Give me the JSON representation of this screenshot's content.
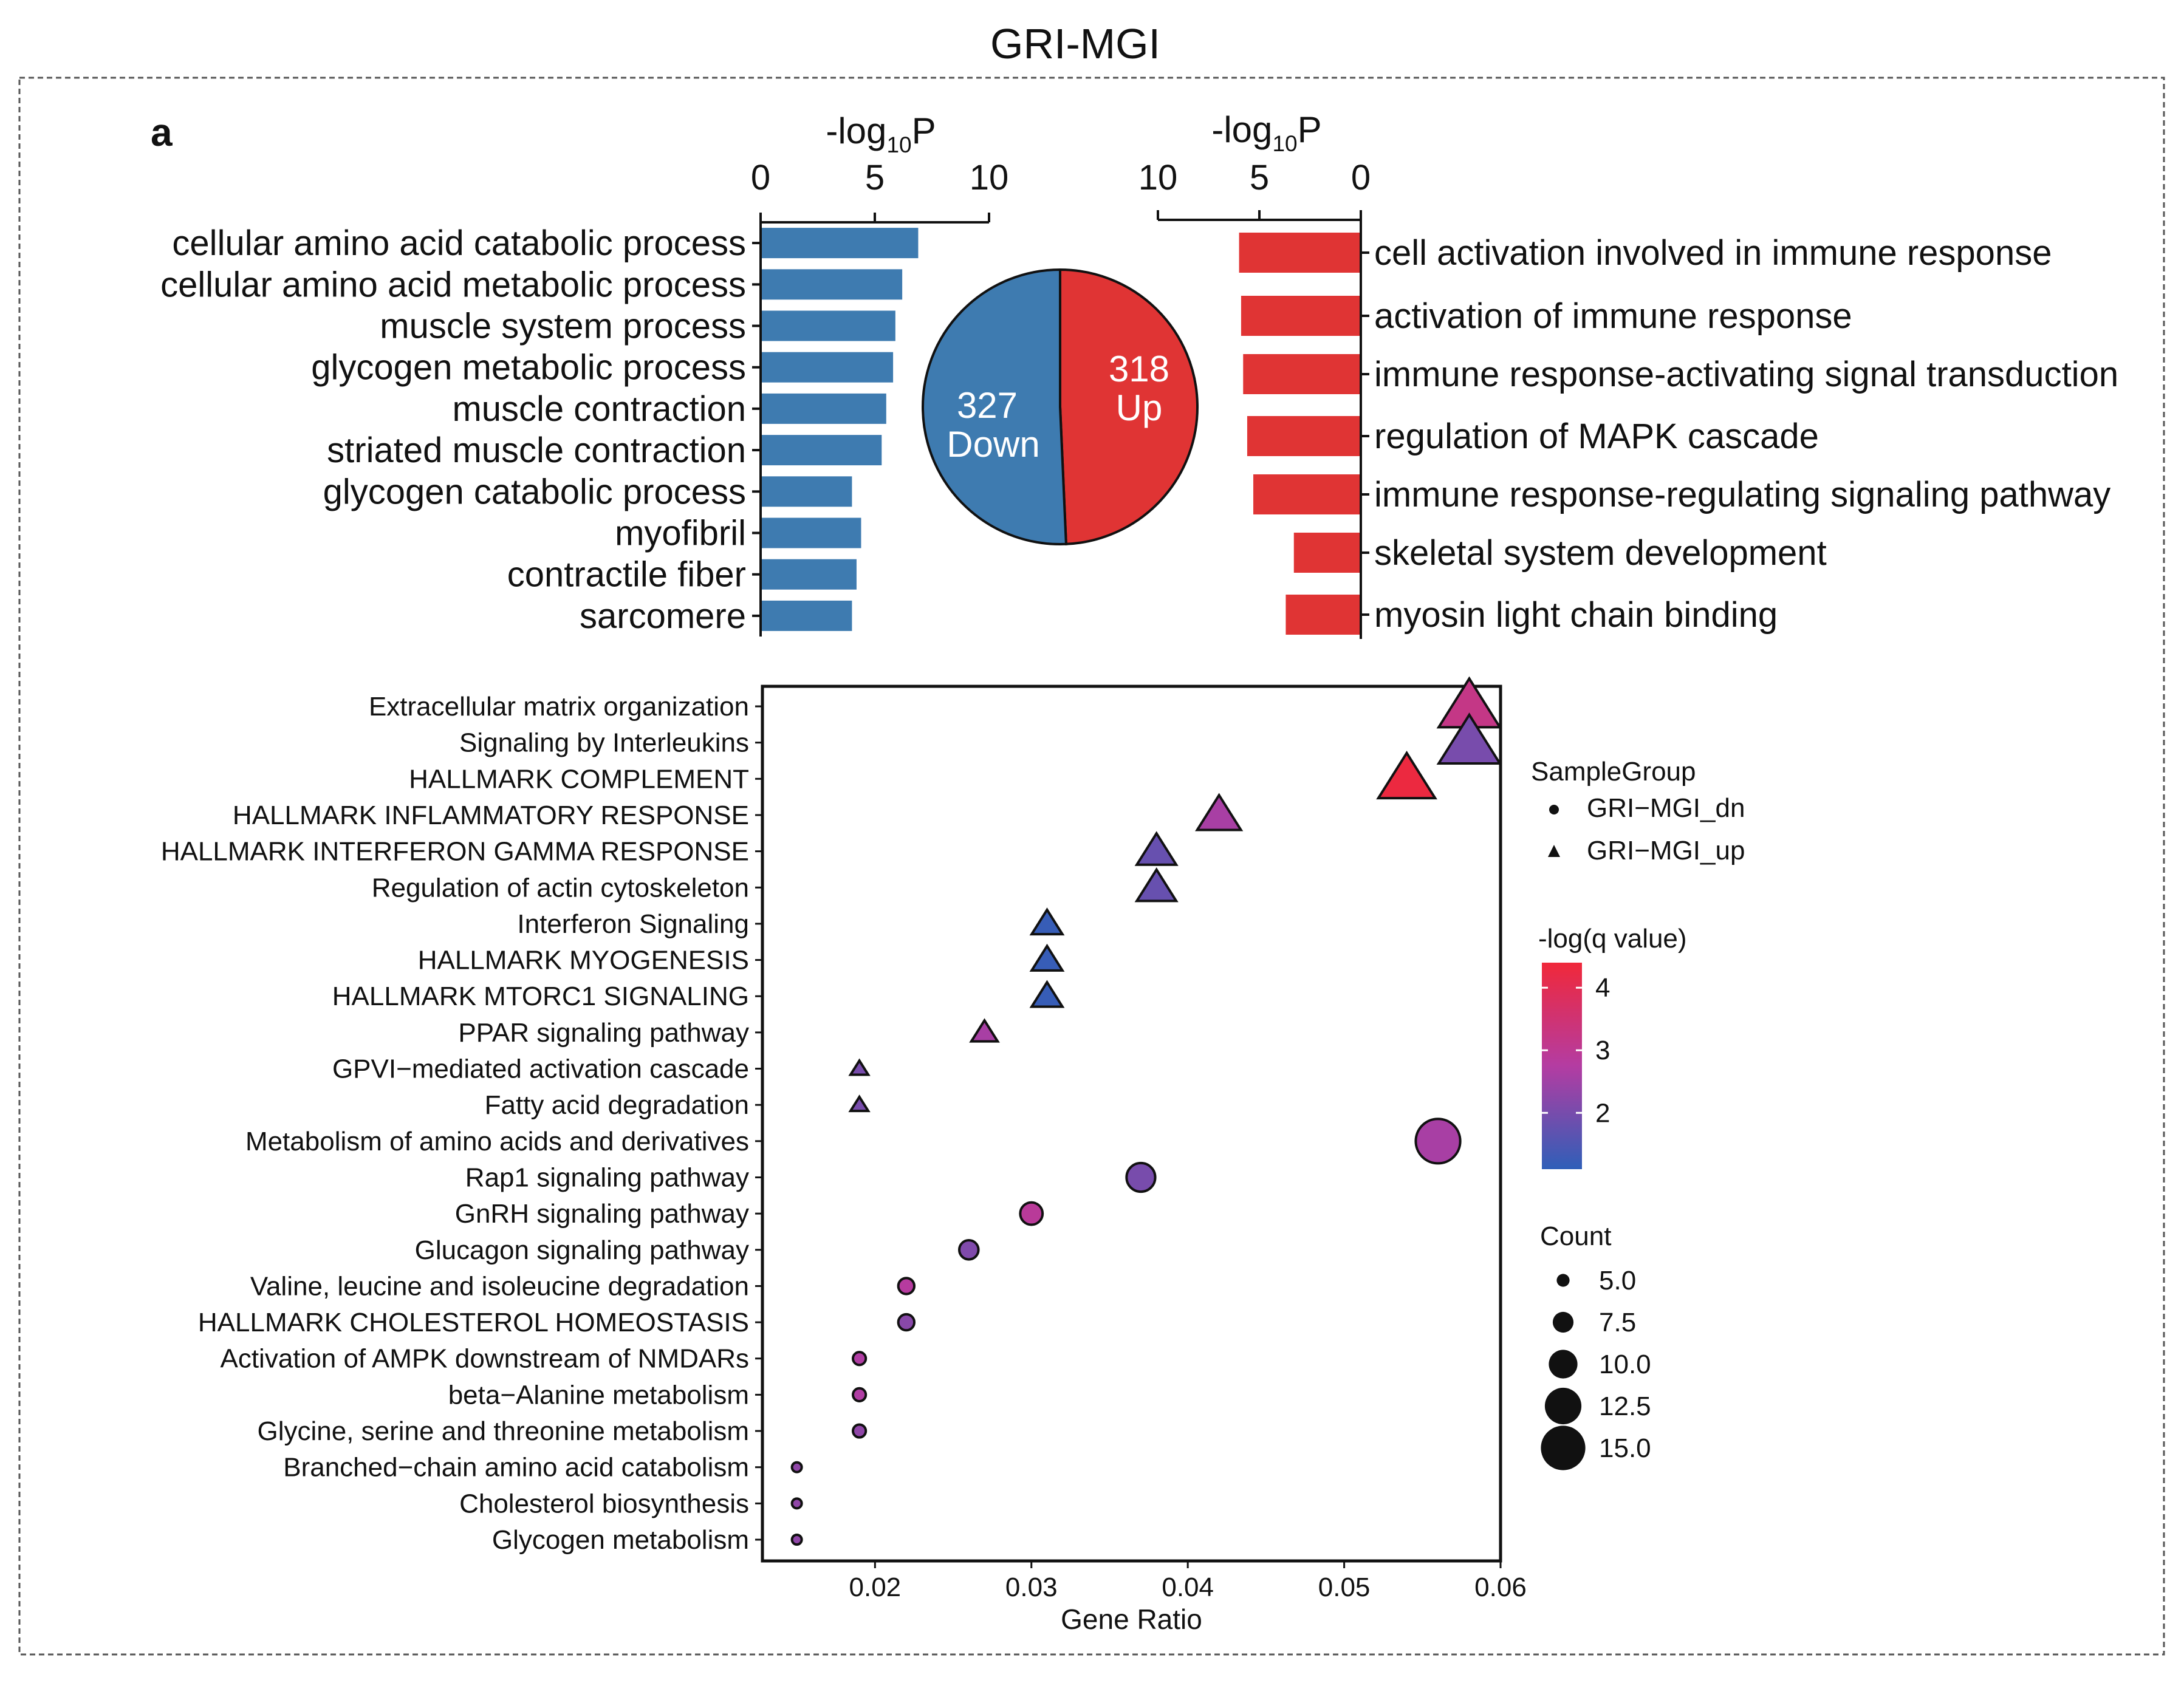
{
  "page_title": "GRI-MGI",
  "panel_label": "a",
  "colors": {
    "down": "#3e7bb0",
    "up": "#e03434",
    "axis": "#111111",
    "frame_dash": "#555555"
  },
  "chart_data": [
    {
      "type": "bar",
      "orientation": "horizontal",
      "direction": "down",
      "axis_title": "-log10P",
      "axis_title_parts": {
        "base": "-log",
        "sub": "10",
        "tail": "P"
      },
      "xlim": [
        0,
        10
      ],
      "ticks": [
        "0",
        "5",
        "10"
      ],
      "categories": [
        "cellular amino acid catabolic process",
        "cellular amino acid metabolic process",
        "muscle system process",
        "glycogen metabolic process",
        "muscle contraction",
        "striated muscle contraction",
        "glycogen catabolic process",
        "myofibril",
        "contractile fiber",
        "sarcomere"
      ],
      "values": [
        6.9,
        6.2,
        5.9,
        5.8,
        5.5,
        5.3,
        4.0,
        4.4,
        4.2,
        4.0
      ]
    },
    {
      "type": "pie",
      "slices": [
        {
          "value": 327,
          "label": "Down",
          "color": "#3e7bb0"
        },
        {
          "value": 318,
          "label": "Up",
          "color": "#e03434"
        }
      ]
    },
    {
      "type": "bar",
      "orientation": "horizontal",
      "direction": "up",
      "axis_title": "-log10P",
      "axis_title_parts": {
        "base": "-log",
        "sub": "10",
        "tail": "P"
      },
      "xlim": [
        10,
        0
      ],
      "ticks": [
        "10",
        "5",
        "0"
      ],
      "categories": [
        "cell activation involved in immune response",
        "activation of immune response",
        "immune response-activating signal transduction",
        "regulation of MAPK cascade",
        "immune response-regulating signaling pathway",
        "skeletal system development",
        "myosin light chain binding"
      ],
      "values": [
        6.0,
        5.9,
        5.8,
        5.6,
        5.3,
        3.3,
        3.7
      ]
    },
    {
      "type": "scatter",
      "xlabel": "Gene Ratio",
      "xlim": [
        0.0128,
        0.06
      ],
      "xticks": [
        0.02,
        0.03,
        0.04,
        0.05,
        0.06
      ],
      "xtick_labels": [
        "0.02",
        "0.03",
        "0.04",
        "0.05",
        "0.06"
      ],
      "categories": [
        "Extracellular matrix organization",
        "Signaling by Interleukins",
        "HALLMARK COMPLEMENT",
        "HALLMARK INFLAMMATORY RESPONSE",
        "HALLMARK INTERFERON GAMMA RESPONSE",
        "Regulation of actin cytoskeleton",
        "Interferon Signaling",
        "HALLMARK MYOGENESIS",
        "HALLMARK MTORC1 SIGNALING",
        "PPAR signaling pathway",
        "GPVI−mediated activation cascade",
        "Fatty acid degradation",
        "Metabolism of amino acids and derivatives",
        "Rap1 signaling pathway",
        "GnRH signaling pathway",
        "Glucagon signaling pathway",
        "Valine, leucine and isoleucine degradation",
        "HALLMARK CHOLESTEROL HOMEOSTASIS",
        "Activation of AMPK downstream of NMDARs",
        "beta−Alanine metabolism",
        "Glycine, serine and threonine metabolism",
        "Branched−chain amino acid catabolism",
        "Cholesterol biosynthesis",
        "Glycogen metabolism"
      ],
      "points": [
        {
          "x": 0.058,
          "count": 15,
          "neg_log_q": 3.2,
          "group": "GRI−MGI_up"
        },
        {
          "x": 0.058,
          "count": 15,
          "neg_log_q": 2.0,
          "group": "GRI−MGI_up"
        },
        {
          "x": 0.054,
          "count": 14,
          "neg_log_q": 4.3,
          "group": "GRI−MGI_up"
        },
        {
          "x": 0.042,
          "count": 11,
          "neg_log_q": 2.6,
          "group": "GRI−MGI_up"
        },
        {
          "x": 0.038,
          "count": 10,
          "neg_log_q": 1.8,
          "group": "GRI−MGI_up"
        },
        {
          "x": 0.038,
          "count": 10,
          "neg_log_q": 1.8,
          "group": "GRI−MGI_up"
        },
        {
          "x": 0.031,
          "count": 8,
          "neg_log_q": 1.2,
          "group": "GRI−MGI_up"
        },
        {
          "x": 0.031,
          "count": 8,
          "neg_log_q": 1.2,
          "group": "GRI−MGI_up"
        },
        {
          "x": 0.031,
          "count": 8,
          "neg_log_q": 1.2,
          "group": "GRI−MGI_up"
        },
        {
          "x": 0.027,
          "count": 7,
          "neg_log_q": 2.6,
          "group": "GRI−MGI_up"
        },
        {
          "x": 0.019,
          "count": 5,
          "neg_log_q": 2.0,
          "group": "GRI−MGI_up"
        },
        {
          "x": 0.019,
          "count": 5,
          "neg_log_q": 2.0,
          "group": "GRI−MGI_up"
        },
        {
          "x": 0.056,
          "count": 15,
          "neg_log_q": 2.6,
          "group": "GRI−MGI_dn"
        },
        {
          "x": 0.037,
          "count": 10,
          "neg_log_q": 2.0,
          "group": "GRI−MGI_dn"
        },
        {
          "x": 0.03,
          "count": 8,
          "neg_log_q": 2.9,
          "group": "GRI−MGI_dn"
        },
        {
          "x": 0.026,
          "count": 7,
          "neg_log_q": 2.1,
          "group": "GRI−MGI_dn"
        },
        {
          "x": 0.022,
          "count": 6,
          "neg_log_q": 2.8,
          "group": "GRI−MGI_dn"
        },
        {
          "x": 0.022,
          "count": 6,
          "neg_log_q": 2.2,
          "group": "GRI−MGI_dn"
        },
        {
          "x": 0.019,
          "count": 5,
          "neg_log_q": 2.7,
          "group": "GRI−MGI_dn"
        },
        {
          "x": 0.019,
          "count": 5,
          "neg_log_q": 2.7,
          "group": "GRI−MGI_dn"
        },
        {
          "x": 0.019,
          "count": 5,
          "neg_log_q": 2.3,
          "group": "GRI−MGI_dn"
        },
        {
          "x": 0.015,
          "count": 4,
          "neg_log_q": 2.3,
          "group": "GRI−MGI_dn"
        },
        {
          "x": 0.015,
          "count": 4,
          "neg_log_q": 2.3,
          "group": "GRI−MGI_dn"
        },
        {
          "x": 0.015,
          "count": 4,
          "neg_log_q": 2.3,
          "group": "GRI−MGI_dn"
        }
      ],
      "legend": {
        "shape": {
          "title": "SampleGroup",
          "entries": [
            {
              "label": "GRI−MGI_dn",
              "shape": "circle"
            },
            {
              "label": "GRI−MGI_up",
              "shape": "triangle"
            }
          ]
        },
        "color": {
          "title": "-log(q value)",
          "range": [
            1.1,
            4.4
          ],
          "ticks": [
            2,
            3,
            4
          ],
          "tick_labels": [
            "2",
            "3",
            "4"
          ],
          "low_color": "#2f5fb8",
          "mid_color": "#b43ca2",
          "high_color": "#f0283a"
        },
        "size": {
          "title": "Count",
          "values": [
            5.0,
            7.5,
            10.0,
            12.5,
            15.0
          ],
          "labels": [
            "5.0",
            "7.5",
            "10.0",
            "12.5",
            "15.0"
          ]
        }
      }
    }
  ]
}
